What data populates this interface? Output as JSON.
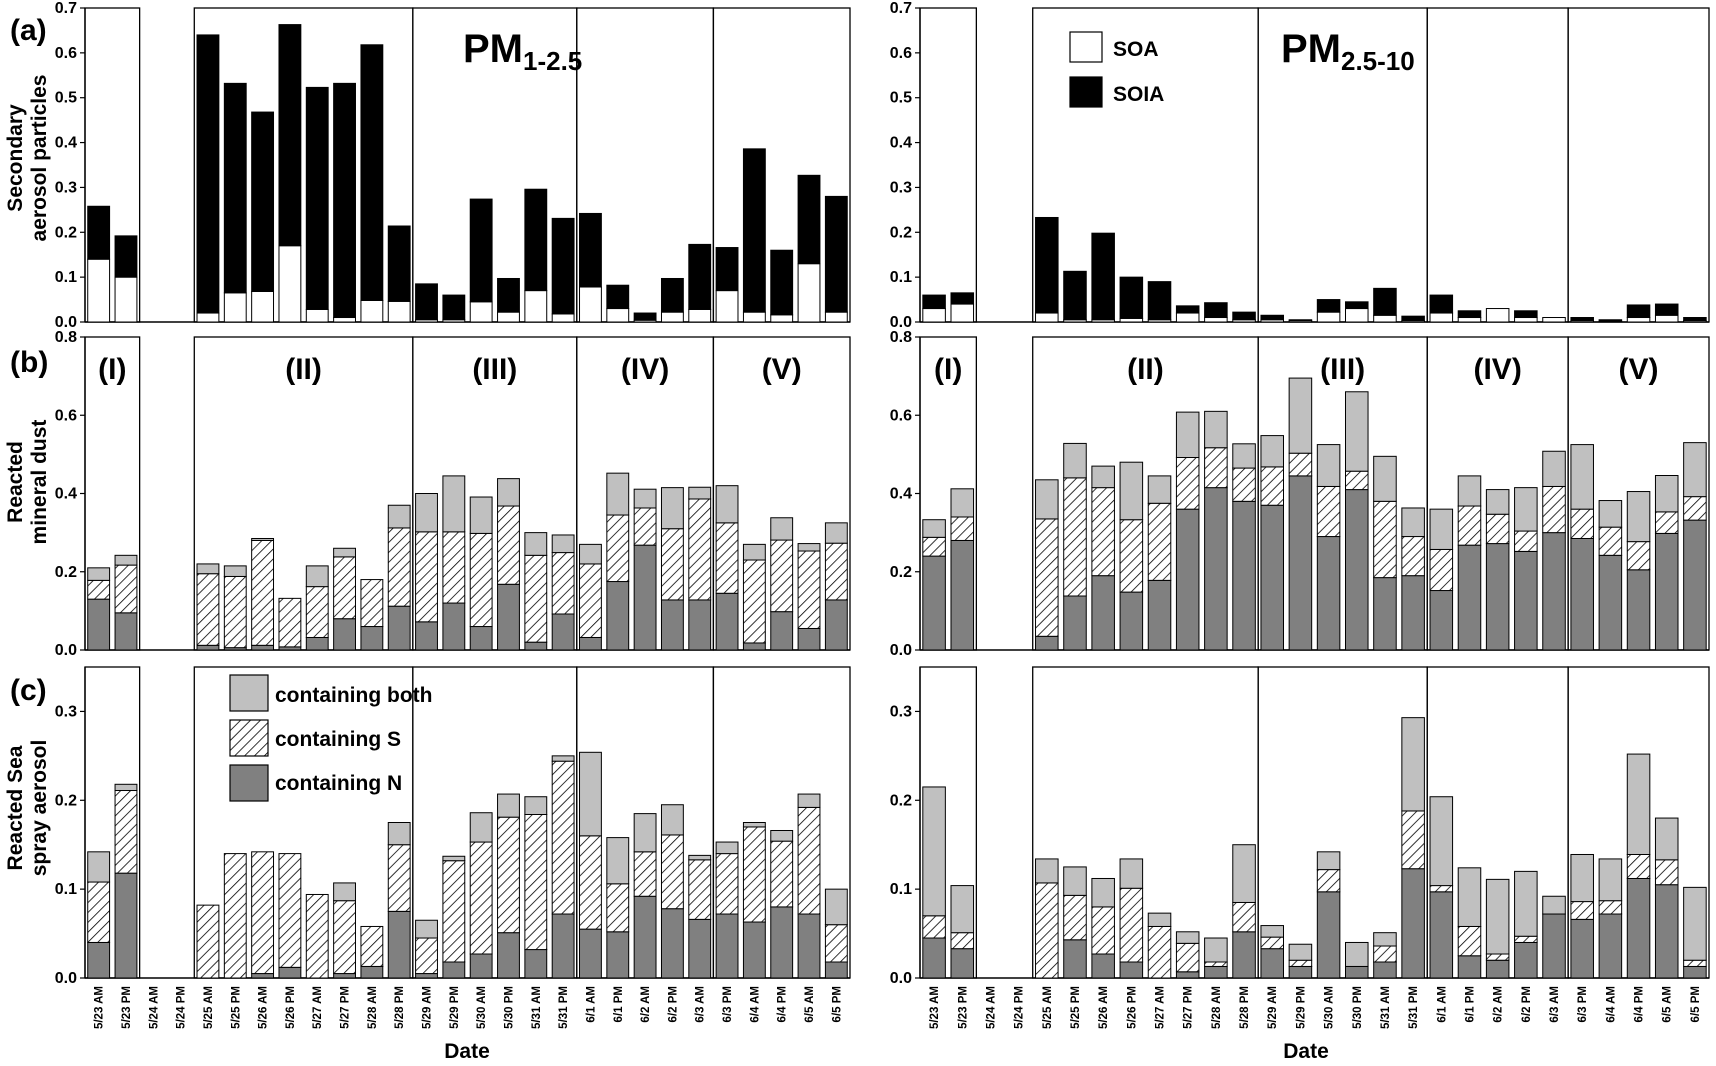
{
  "colors": {
    "soa": "#ffffff",
    "soia": "#000000",
    "both": "#c0c0c0",
    "sulfur": "hatch",
    "nitrogen": "#808080"
  },
  "labels": {
    "panel_a": "(a)",
    "panel_b": "(b)",
    "panel_c": "(c)",
    "ylabel_a_line1": "Secondary",
    "ylabel_a_line2": "aerosol particles",
    "ylabel_b_line1": "Reacted",
    "ylabel_b_line2": "mineral dust",
    "ylabel_c_line1": "Reacted Sea",
    "ylabel_c_line2": "spray aerosol",
    "xlabel": "Date",
    "pm_left_main": "PM",
    "pm_left_sub": "1-2.5",
    "pm_right_main": "PM",
    "pm_right_sub": "2.5-10",
    "periods": [
      "(I)",
      "(II)",
      "(III)",
      "(IV)",
      "(V)"
    ],
    "legend_a": [
      "SOA",
      "SOIA"
    ],
    "legend_c": [
      "containing both",
      "containing S",
      "containing N"
    ]
  },
  "chart_data": [
    {
      "type": "bar",
      "stacked": true,
      "panel": "(a)",
      "size_fraction": "PM1-2.5",
      "categories": [
        "5/23 AM",
        "5/23 PM",
        "5/24 AM",
        "5/24 PM",
        "5/25 AM",
        "5/25 PM",
        "5/26 AM",
        "5/26 PM",
        "5/27 AM",
        "5/27 PM",
        "5/28 AM",
        "5/28 PM",
        "5/29 AM",
        "5/29 PM",
        "5/30 AM",
        "5/30 PM",
        "5/31 AM",
        "5/31 PM",
        "6/1 AM",
        "6/1 PM",
        "6/2 AM",
        "6/2 PM",
        "6/3 AM",
        "6/3 PM",
        "6/4 AM",
        "6/4 PM",
        "6/5 AM",
        "6/5 PM"
      ],
      "ylabel": "Secondary aerosol particles",
      "ylim": [
        0,
        0.7
      ],
      "yticks": [
        "0.0",
        "0.1",
        "0.2",
        "0.3",
        "0.4",
        "0.5",
        "0.6",
        "0.7"
      ],
      "series": [
        {
          "name": "SOA",
          "values": [
            0.14,
            0.1,
            null,
            null,
            0.02,
            0.065,
            0.068,
            0.17,
            0.028,
            0.01,
            0.048,
            0.046,
            0.005,
            0.005,
            0.045,
            0.022,
            0.07,
            0.018,
            0.078,
            0.03,
            0.004,
            0.022,
            0.028,
            0.07,
            0.022,
            0.016,
            0.13,
            0.022
          ]
        },
        {
          "name": "SOIA",
          "values": [
            0.118,
            0.092,
            null,
            null,
            0.62,
            0.467,
            0.4,
            0.493,
            0.495,
            0.522,
            0.57,
            0.168,
            0.08,
            0.055,
            0.229,
            0.075,
            0.226,
            0.213,
            0.164,
            0.052,
            0.016,
            0.075,
            0.145,
            0.096,
            0.364,
            0.144,
            0.197,
            0.258
          ]
        }
      ]
    },
    {
      "type": "bar",
      "stacked": true,
      "panel": "(a)",
      "size_fraction": "PM2.5-10",
      "categories": [
        "5/23 AM",
        "5/23 PM",
        "5/24 AM",
        "5/24 PM",
        "5/25 AM",
        "5/25 PM",
        "5/26 AM",
        "5/26 PM",
        "5/27 AM",
        "5/27 PM",
        "5/28 AM",
        "5/28 PM",
        "5/29 AM",
        "5/29 PM",
        "5/30 AM",
        "5/30 PM",
        "5/31 AM",
        "5/31 PM",
        "6/1 AM",
        "6/1 PM",
        "6/2 AM",
        "6/2 PM",
        "6/3 AM",
        "6/3 PM",
        "6/4 AM",
        "6/4 PM",
        "6/5 AM",
        "6/5 PM"
      ],
      "ylim": [
        0,
        0.7
      ],
      "yticks": [
        "0.0",
        "0.1",
        "0.2",
        "0.3",
        "0.4",
        "0.5",
        "0.6",
        "0.7"
      ],
      "series": [
        {
          "name": "SOA",
          "values": [
            0.03,
            0.04,
            null,
            null,
            0.02,
            0.005,
            0.005,
            0.008,
            0.005,
            0.02,
            0.01,
            0.005,
            0.005,
            0.003,
            0.022,
            0.03,
            0.015,
            0.003,
            0.02,
            0.01,
            0.03,
            0.01,
            0.01,
            0.003,
            0.002,
            0.01,
            0.015,
            0.003
          ]
        },
        {
          "name": "SOIA",
          "values": [
            0.03,
            0.025,
            null,
            null,
            0.213,
            0.108,
            0.193,
            0.092,
            0.085,
            0.016,
            0.033,
            0.017,
            0.01,
            0.002,
            0.028,
            0.015,
            0.06,
            0.01,
            0.04,
            0.015,
            0.0,
            0.015,
            0.0,
            0.007,
            0.003,
            0.028,
            0.025,
            0.007
          ]
        }
      ]
    },
    {
      "type": "bar",
      "stacked": true,
      "panel": "(b)",
      "size_fraction": "PM1-2.5",
      "categories": [
        "5/23 AM",
        "5/23 PM",
        "5/24 AM",
        "5/24 PM",
        "5/25 AM",
        "5/25 PM",
        "5/26 AM",
        "5/26 PM",
        "5/27 AM",
        "5/27 PM",
        "5/28 AM",
        "5/28 PM",
        "5/29 AM",
        "5/29 PM",
        "5/30 AM",
        "5/30 PM",
        "5/31 AM",
        "5/31 PM",
        "6/1 AM",
        "6/1 PM",
        "6/2 AM",
        "6/2 PM",
        "6/3 AM",
        "6/3 PM",
        "6/4 AM",
        "6/4 PM",
        "6/5 AM",
        "6/5 PM"
      ],
      "ylabel": "Reacted mineral dust",
      "ylim": [
        0,
        0.8
      ],
      "yticks": [
        "0.0",
        "0.2",
        "0.4",
        "0.6",
        "0.8"
      ],
      "series": [
        {
          "name": "containing N",
          "values": [
            0.13,
            0.095,
            null,
            null,
            0.012,
            0.006,
            0.012,
            0.008,
            0.032,
            0.08,
            0.06,
            0.112,
            0.072,
            0.12,
            0.06,
            0.168,
            0.02,
            0.092,
            0.032,
            0.175,
            0.268,
            0.128,
            0.128,
            0.145,
            0.018,
            0.098,
            0.055,
            0.128
          ]
        },
        {
          "name": "containing S",
          "values": [
            0.048,
            0.122,
            null,
            null,
            0.183,
            0.182,
            0.268,
            0.124,
            0.13,
            0.158,
            0.12,
            0.2,
            0.23,
            0.182,
            0.238,
            0.2,
            0.222,
            0.157,
            0.188,
            0.17,
            0.095,
            0.182,
            0.258,
            0.18,
            0.212,
            0.183,
            0.198,
            0.145
          ]
        },
        {
          "name": "containing both",
          "values": [
            0.032,
            0.025,
            null,
            null,
            0.025,
            0.027,
            0.005,
            0.0,
            0.053,
            0.022,
            0.0,
            0.058,
            0.098,
            0.143,
            0.093,
            0.07,
            0.058,
            0.045,
            0.05,
            0.107,
            0.048,
            0.105,
            0.03,
            0.095,
            0.04,
            0.057,
            0.019,
            0.052
          ]
        }
      ]
    },
    {
      "type": "bar",
      "stacked": true,
      "panel": "(b)",
      "size_fraction": "PM2.5-10",
      "categories": [
        "5/23 AM",
        "5/23 PM",
        "5/24 AM",
        "5/24 PM",
        "5/25 AM",
        "5/25 PM",
        "5/26 AM",
        "5/26 PM",
        "5/27 AM",
        "5/27 PM",
        "5/28 AM",
        "5/28 PM",
        "5/29 AM",
        "5/29 PM",
        "5/30 AM",
        "5/30 PM",
        "5/31 AM",
        "5/31 PM",
        "6/1 AM",
        "6/1 PM",
        "6/2 AM",
        "6/2 PM",
        "6/3 AM",
        "6/3 PM",
        "6/4 AM",
        "6/4 PM",
        "6/5 AM",
        "6/5 PM"
      ],
      "ylim": [
        0,
        0.8
      ],
      "yticks": [
        "0.0",
        "0.2",
        "0.4",
        "0.6",
        "0.8"
      ],
      "series": [
        {
          "name": "containing N",
          "values": [
            0.24,
            0.28,
            null,
            null,
            0.035,
            0.138,
            0.19,
            0.148,
            0.178,
            0.36,
            0.415,
            0.38,
            0.37,
            0.445,
            0.29,
            0.41,
            0.185,
            0.19,
            0.152,
            0.268,
            0.272,
            0.252,
            0.3,
            0.285,
            0.242,
            0.205,
            0.298,
            0.332
          ]
        },
        {
          "name": "containing S",
          "values": [
            0.048,
            0.06,
            null,
            null,
            0.3,
            0.302,
            0.225,
            0.185,
            0.197,
            0.132,
            0.102,
            0.085,
            0.098,
            0.058,
            0.128,
            0.047,
            0.195,
            0.1,
            0.105,
            0.1,
            0.075,
            0.052,
            0.118,
            0.075,
            0.072,
            0.072,
            0.055,
            0.06
          ]
        },
        {
          "name": "containing both",
          "values": [
            0.045,
            0.072,
            null,
            null,
            0.1,
            0.088,
            0.055,
            0.147,
            0.07,
            0.116,
            0.093,
            0.062,
            0.08,
            0.192,
            0.107,
            0.203,
            0.115,
            0.073,
            0.103,
            0.077,
            0.063,
            0.111,
            0.09,
            0.165,
            0.068,
            0.128,
            0.093,
            0.138
          ]
        }
      ]
    },
    {
      "type": "bar",
      "stacked": true,
      "panel": "(c)",
      "size_fraction": "PM1-2.5",
      "categories": [
        "5/23 AM",
        "5/23 PM",
        "5/24 AM",
        "5/24 PM",
        "5/25 AM",
        "5/25 PM",
        "5/26 AM",
        "5/26 PM",
        "5/27 AM",
        "5/27 PM",
        "5/28 AM",
        "5/28 PM",
        "5/29 AM",
        "5/29 PM",
        "5/30 AM",
        "5/30 PM",
        "5/31 AM",
        "5/31 PM",
        "6/1 AM",
        "6/1 PM",
        "6/2 AM",
        "6/2 PM",
        "6/3 AM",
        "6/3 PM",
        "6/4 AM",
        "6/4 PM",
        "6/5 AM",
        "6/5 PM"
      ],
      "ylabel": "Reacted Sea spray aerosol",
      "ylim": [
        0,
        0.35
      ],
      "yticks": [
        "0.0",
        "0.1",
        "0.2",
        "0.3"
      ],
      "series": [
        {
          "name": "containing N",
          "values": [
            0.04,
            0.118,
            null,
            null,
            0.0,
            0.0,
            0.005,
            0.012,
            0.0,
            0.005,
            0.013,
            0.075,
            0.005,
            0.018,
            0.027,
            0.051,
            0.032,
            0.072,
            0.055,
            0.052,
            0.092,
            0.078,
            0.066,
            0.072,
            0.063,
            0.08,
            0.072,
            0.018
          ]
        },
        {
          "name": "containing S",
          "values": [
            0.068,
            0.093,
            null,
            null,
            0.082,
            0.14,
            0.137,
            0.128,
            0.094,
            0.082,
            0.045,
            0.075,
            0.04,
            0.114,
            0.126,
            0.13,
            0.152,
            0.172,
            0.105,
            0.054,
            0.05,
            0.083,
            0.067,
            0.068,
            0.107,
            0.074,
            0.12,
            0.042
          ]
        },
        {
          "name": "containing both",
          "values": [
            0.034,
            0.007,
            null,
            null,
            0.0,
            0.0,
            0.0,
            0.0,
            0.0,
            0.02,
            0.0,
            0.025,
            0.02,
            0.005,
            0.033,
            0.026,
            0.02,
            0.006,
            0.094,
            0.052,
            0.043,
            0.034,
            0.005,
            0.013,
            0.005,
            0.012,
            0.015,
            0.04
          ]
        }
      ]
    },
    {
      "type": "bar",
      "stacked": true,
      "panel": "(c)",
      "size_fraction": "PM2.5-10",
      "categories": [
        "5/23 AM",
        "5/23 PM",
        "5/24 AM",
        "5/24 PM",
        "5/25 AM",
        "5/25 PM",
        "5/26 AM",
        "5/26 PM",
        "5/27 AM",
        "5/27 PM",
        "5/28 AM",
        "5/28 PM",
        "5/29 AM",
        "5/29 PM",
        "5/30 AM",
        "5/30 PM",
        "5/31 AM",
        "5/31 PM",
        "6/1 AM",
        "6/1 PM",
        "6/2 AM",
        "6/2 PM",
        "6/3 AM",
        "6/3 PM",
        "6/4 AM",
        "6/4 PM",
        "6/5 AM",
        "6/5 PM"
      ],
      "ylim": [
        0,
        0.35
      ],
      "yticks": [
        "0.0",
        "0.1",
        "0.2",
        "0.3"
      ],
      "series": [
        {
          "name": "containing N",
          "values": [
            0.045,
            0.033,
            null,
            null,
            0.0,
            0.043,
            0.027,
            0.018,
            0.0,
            0.007,
            0.013,
            0.052,
            0.033,
            0.013,
            0.097,
            0.013,
            0.018,
            0.123,
            0.097,
            0.025,
            0.02,
            0.04,
            0.072,
            0.066,
            0.072,
            0.112,
            0.105,
            0.013
          ]
        },
        {
          "name": "containing S",
          "values": [
            0.025,
            0.018,
            null,
            null,
            0.107,
            0.05,
            0.053,
            0.083,
            0.058,
            0.032,
            0.005,
            0.033,
            0.013,
            0.007,
            0.025,
            0.0,
            0.018,
            0.065,
            0.007,
            0.033,
            0.007,
            0.007,
            0.0,
            0.02,
            0.015,
            0.027,
            0.028,
            0.007
          ]
        },
        {
          "name": "containing both",
          "values": [
            0.145,
            0.053,
            null,
            null,
            0.027,
            0.032,
            0.032,
            0.033,
            0.015,
            0.013,
            0.027,
            0.065,
            0.013,
            0.018,
            0.02,
            0.027,
            0.015,
            0.105,
            0.1,
            0.066,
            0.084,
            0.073,
            0.02,
            0.053,
            0.047,
            0.113,
            0.047,
            0.082
          ]
        }
      ]
    }
  ]
}
